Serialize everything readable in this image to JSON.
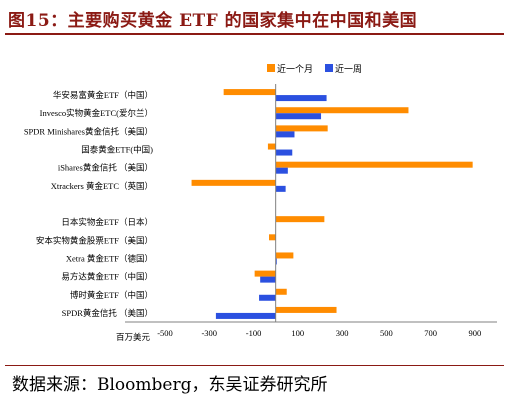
{
  "figure": {
    "title": "图15：主要购买黄金 ETF 的国家集中在中国和美国",
    "source": "数据来源：Bloomberg，东吴证券研究所"
  },
  "chart_data": {
    "type": "bar",
    "orientation": "horizontal",
    "title": "",
    "xlabel": "百万美元",
    "ylabel": "",
    "xlim": [
      -500,
      1000
    ],
    "x_ticks": [
      -500,
      -300,
      -100,
      100,
      300,
      500,
      700,
      900
    ],
    "grid": false,
    "legend_position": "top-right",
    "categories": [
      "华安易富黄金ETF（中国）",
      "Invesco实物黄金ETC(爱尔兰）",
      "SPDR Minishares黄金信托（美国）",
      "国泰黄金ETF(中国)",
      "iShares黄金信托 （美国）",
      "Xtrackers 黄金ETC（英国）",
      "",
      "日本实物金ETF（日本）",
      "安本实物黄金股票ETF（美国）",
      "Xetra 黄金ETF（德国）",
      "易方达黄金ETF（中国）",
      "博时黄金ETF（中国）",
      "SPDR黄金信托 （美国）"
    ],
    "series": [
      {
        "name": "近一个月",
        "color": "#ff8c00",
        "values": [
          -235,
          600,
          235,
          -35,
          890,
          -380,
          null,
          220,
          -30,
          80,
          -95,
          50,
          275
        ]
      },
      {
        "name": "近一周",
        "color": "#2b50e0",
        "values": [
          230,
          205,
          85,
          75,
          55,
          45,
          null,
          0,
          0,
          5,
          -70,
          -75,
          -270
        ]
      }
    ]
  }
}
